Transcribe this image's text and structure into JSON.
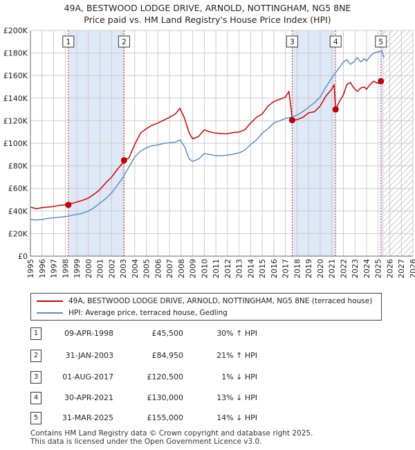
{
  "title_line1": "49A, BESTWOOD LODGE DRIVE, ARNOLD, NOTTINGHAM, NG5 8NE",
  "title_line2": "Price paid vs. HM Land Registry's House Price Index (HPI)",
  "colors": {
    "property": "#cc0000",
    "hpi": "#5b8dc9",
    "shade": "#dfe8f7",
    "grid": "#cccccc",
    "marker_line": "#cc3333"
  },
  "chart_data": {
    "type": "line",
    "xlim": [
      1995,
      2028
    ],
    "ylim": [
      0,
      200000
    ],
    "y_ticks": [
      0,
      20000,
      40000,
      60000,
      80000,
      100000,
      120000,
      140000,
      160000,
      180000,
      200000
    ],
    "y_tick_labels": [
      "£0",
      "£20K",
      "£40K",
      "£60K",
      "£80K",
      "£100K",
      "£120K",
      "£140K",
      "£160K",
      "£180K",
      "£200K"
    ],
    "x_ticks": [
      1995,
      1996,
      1997,
      1998,
      1999,
      2000,
      2001,
      2002,
      2003,
      2004,
      2005,
      2006,
      2007,
      2008,
      2009,
      2010,
      2011,
      2012,
      2013,
      2014,
      2015,
      2016,
      2017,
      2018,
      2019,
      2020,
      2021,
      2022,
      2023,
      2024,
      2025,
      2026,
      2027,
      2028
    ],
    "x_tick_labels": [
      "1995",
      "1996",
      "1997",
      "1998",
      "1999",
      "2000",
      "2001",
      "2002",
      "2003",
      "2004",
      "2005",
      "2006",
      "2007",
      "2008",
      "2009",
      "2010",
      "2011",
      "2012",
      "2013",
      "2014",
      "2015",
      "2016",
      "2017",
      "2018",
      "2019",
      "2020",
      "2021",
      "2022",
      "2023",
      "2024",
      "2025",
      "2026",
      "2027",
      "2028"
    ],
    "shaded_periods": [
      [
        1998.27,
        2003.08
      ],
      [
        2017.58,
        2021.33
      ],
      [
        2025.24,
        2025.5
      ]
    ],
    "future_hatch_from": 2025.5,
    "series": [
      {
        "name": "49A, BESTWOOD LODGE DRIVE, ARNOLD, NOTTINGHAM, NG5 8NE (terraced house)",
        "color": "#cc0000",
        "x": [
          1995.0,
          1995.5,
          1996.0,
          1996.5,
          1997.0,
          1997.5,
          1998.0,
          1998.27,
          1998.5,
          1999.0,
          1999.5,
          2000.0,
          2000.5,
          2001.0,
          2001.5,
          2002.0,
          2002.5,
          2003.0,
          2003.08,
          2003.5,
          2004.0,
          2004.5,
          2005.0,
          2005.5,
          2006.0,
          2006.5,
          2007.0,
          2007.5,
          2007.9,
          2008.3,
          2008.7,
          2009.0,
          2009.5,
          2010.0,
          2010.5,
          2011.0,
          2011.5,
          2012.0,
          2012.5,
          2013.0,
          2013.5,
          2014.0,
          2014.5,
          2015.0,
          2015.5,
          2016.0,
          2016.5,
          2017.0,
          2017.3,
          2017.5,
          2017.58,
          2018.0,
          2018.5,
          2019.0,
          2019.5,
          2020.0,
          2020.5,
          2021.0,
          2021.2,
          2021.33,
          2021.6,
          2022.0,
          2022.3,
          2022.6,
          2022.9,
          2023.2,
          2023.5,
          2023.8,
          2024.0,
          2024.3,
          2024.6,
          2025.0,
          2025.24,
          2025.4
        ],
        "y": [
          43500,
          42000,
          43000,
          43500,
          44000,
          45000,
          45500,
          45500,
          46500,
          48000,
          49500,
          51500,
          55000,
          59000,
          65000,
          70000,
          77000,
          83000,
          84950,
          87000,
          99000,
          109000,
          113000,
          116000,
          118000,
          120500,
          123000,
          126000,
          131000,
          122000,
          109000,
          104000,
          106000,
          112000,
          110000,
          109000,
          108500,
          108500,
          109500,
          110000,
          112000,
          118000,
          123000,
          126000,
          133000,
          137000,
          139000,
          141000,
          146000,
          130000,
          120500,
          121000,
          123000,
          127000,
          128000,
          133000,
          142000,
          148000,
          152000,
          130000,
          136000,
          143000,
          152000,
          154000,
          149000,
          146000,
          149000,
          150000,
          148000,
          152000,
          155000,
          153000,
          155000,
          153000
        ]
      },
      {
        "name": "HPI: Average price, terraced house, Gedling",
        "color": "#5b8dc9",
        "x": [
          1995.0,
          1995.5,
          1996.0,
          1996.5,
          1997.0,
          1997.5,
          1998.0,
          1998.5,
          1999.0,
          1999.5,
          2000.0,
          2000.5,
          2001.0,
          2001.5,
          2002.0,
          2002.5,
          2003.0,
          2003.5,
          2004.0,
          2004.5,
          2005.0,
          2005.5,
          2006.0,
          2006.5,
          2007.0,
          2007.5,
          2007.9,
          2008.3,
          2008.7,
          2009.0,
          2009.5,
          2010.0,
          2010.5,
          2011.0,
          2011.5,
          2012.0,
          2012.5,
          2013.0,
          2013.5,
          2014.0,
          2014.5,
          2015.0,
          2015.5,
          2016.0,
          2016.5,
          2017.0,
          2017.5,
          2018.0,
          2018.5,
          2019.0,
          2019.5,
          2020.0,
          2020.5,
          2021.0,
          2021.5,
          2022.0,
          2022.3,
          2022.6,
          2022.9,
          2023.2,
          2023.5,
          2023.8,
          2024.0,
          2024.3,
          2024.6,
          2025.0,
          2025.3,
          2025.5
        ],
        "y": [
          32500,
          32000,
          32500,
          33500,
          34000,
          34500,
          35000,
          36000,
          37000,
          38000,
          40000,
          43000,
          47000,
          51000,
          56000,
          63000,
          70000,
          79000,
          88000,
          93000,
          96000,
          98000,
          98500,
          100000,
          100500,
          101000,
          103000,
          97000,
          86000,
          84000,
          86000,
          91000,
          90000,
          89000,
          89000,
          89500,
          90500,
          91500,
          94000,
          99000,
          103000,
          109000,
          113000,
          118000,
          120000,
          122000,
          123000,
          125000,
          128000,
          132000,
          136000,
          141000,
          150000,
          158000,
          165000,
          172000,
          174000,
          170000,
          172000,
          176000,
          172000,
          175000,
          173000,
          177000,
          180000,
          181000,
          182000,
          176000
        ]
      }
    ],
    "markers": [
      {
        "num": "1",
        "x": 1998.27,
        "y": 45500
      },
      {
        "num": "2",
        "x": 2003.08,
        "y": 84950
      },
      {
        "num": "3",
        "x": 2017.58,
        "y": 120500
      },
      {
        "num": "4",
        "x": 2021.33,
        "y": 130000
      },
      {
        "num": "5",
        "x": 2025.24,
        "y": 155000
      }
    ]
  },
  "legend": {
    "property_label": "49A, BESTWOOD LODGE DRIVE, ARNOLD, NOTTINGHAM, NG5 8NE (terraced house)",
    "hpi_label": "HPI: Average price, terraced house, Gedling"
  },
  "transactions": [
    {
      "num": "1",
      "date": "09-APR-1998",
      "price": "£45,500",
      "hpi": "30% ↑ HPI"
    },
    {
      "num": "2",
      "date": "31-JAN-2003",
      "price": "£84,950",
      "hpi": "21% ↑ HPI"
    },
    {
      "num": "3",
      "date": "01-AUG-2017",
      "price": "£120,500",
      "hpi": "1% ↓ HPI"
    },
    {
      "num": "4",
      "date": "30-APR-2021",
      "price": "£130,000",
      "hpi": "13% ↓ HPI"
    },
    {
      "num": "5",
      "date": "31-MAR-2025",
      "price": "£155,000",
      "hpi": "14% ↓ HPI"
    }
  ],
  "footer_line1": "Contains HM Land Registry data © Crown copyright and database right 2025.",
  "footer_line2": "This data is licensed under the Open Government Licence v3.0."
}
